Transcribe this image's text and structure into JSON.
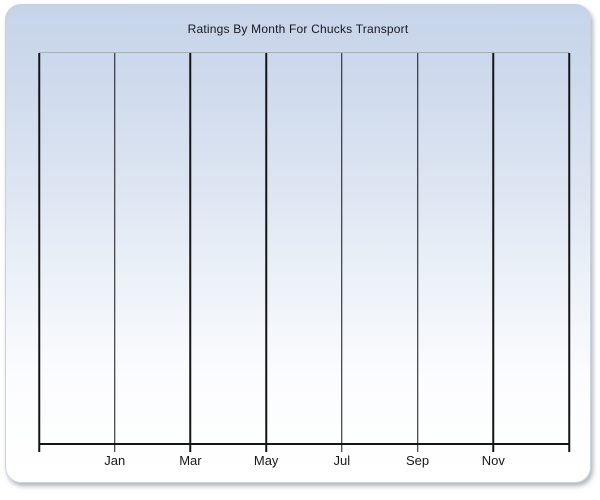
{
  "page": {
    "background_color": "#ffffff"
  },
  "panel": {
    "gradient_top_color": "#c6d4e9",
    "gradient_bottom_color": "#ffffff",
    "border_color": "#c9d2dd",
    "shadow_color": "rgba(108,118,133,0.55)"
  },
  "chart_data": {
    "type": "line",
    "title": "Ratings By Month For Chucks Transport",
    "xlabel": "",
    "ylabel": "",
    "x_tick_labels": [
      "Jan",
      "Mar",
      "May",
      "Jul",
      "Sep",
      "Nov"
    ],
    "x_gridline_count": 8,
    "x_tick_label_gridline_indices": [
      1,
      2,
      3,
      4,
      5,
      6
    ],
    "series": [],
    "values": [],
    "y_tick_labels": [],
    "grid": "vertical-only",
    "legend_position": "none",
    "axis_color": "#151515",
    "plot_top_border_color": "#a5adb5",
    "title_color": "#17171e"
  }
}
